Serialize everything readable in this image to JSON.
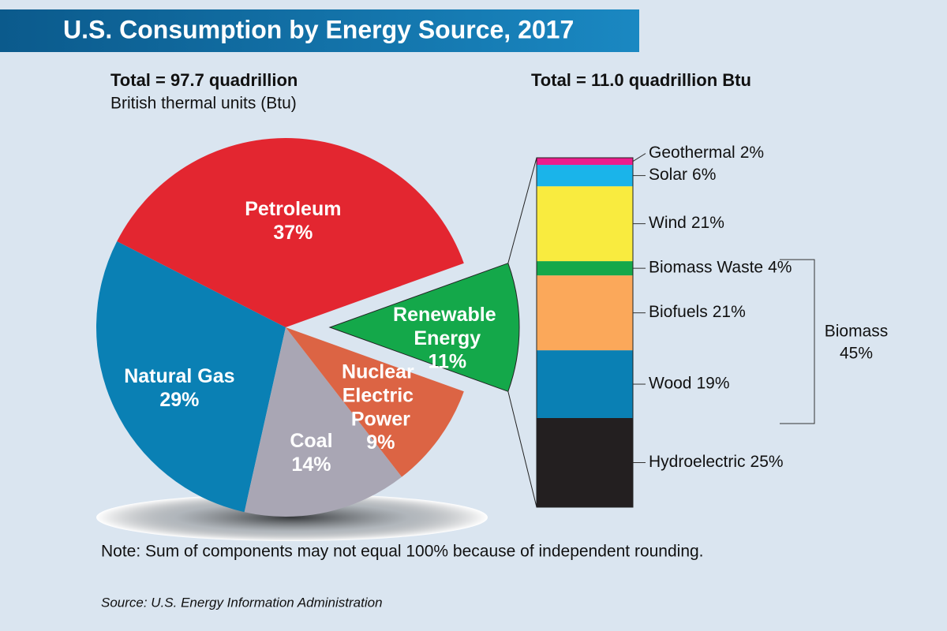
{
  "title": "U.S. Consumption by Energy Source, 2017",
  "note": "Note: Sum of components may not equal 100% because of independent rounding.",
  "source": "Source: U.S. Energy Information Administration",
  "chart_data": [
    {
      "type": "pie",
      "total_label": "Total = 97.7 quadrillion",
      "subtitle": "British thermal units (Btu)",
      "categories": [
        "Petroleum",
        "Natural Gas",
        "Coal",
        "Nuclear Electric Power",
        "Renewable Energy"
      ],
      "values": [
        37,
        29,
        14,
        9,
        11
      ],
      "value_labels": [
        "37%",
        "29%",
        "14%",
        "9%",
        "11%"
      ],
      "colors": [
        "#e32630",
        "#0a80b4",
        "#a9a6b4",
        "#dc6444",
        "#14a84a"
      ]
    },
    {
      "type": "stacked-bar",
      "subtitle": "Total = 11.0 quadrillion Btu",
      "series": [
        {
          "name": "Hydroelectric",
          "color": "#231f20",
          "values": [
            25
          ],
          "value_labels": [
            "25%"
          ]
        },
        {
          "name": "Wood",
          "color": "#0a80b4",
          "values": [
            19
          ],
          "value_labels": [
            "19%"
          ]
        },
        {
          "name": "Biofuels",
          "color": "#fba85a",
          "values": [
            21
          ],
          "value_labels": [
            "21%"
          ]
        },
        {
          "name": "Biomass Waste",
          "color": "#14a84a",
          "values": [
            4
          ],
          "value_labels": [
            "4%"
          ]
        },
        {
          "name": "Wind",
          "color": "#f9eb3f",
          "values": [
            21
          ],
          "value_labels": [
            "21%"
          ]
        },
        {
          "name": "Solar",
          "color": "#1ab4ea",
          "values": [
            6
          ],
          "value_labels": [
            "6%"
          ]
        },
        {
          "name": "Geothermal",
          "color": "#ec1c8c",
          "values": [
            2
          ],
          "value_labels": [
            "2%"
          ]
        }
      ],
      "groups": [
        {
          "name": "Biomass",
          "value": 45,
          "value_label": "45%"
        }
      ]
    }
  ]
}
